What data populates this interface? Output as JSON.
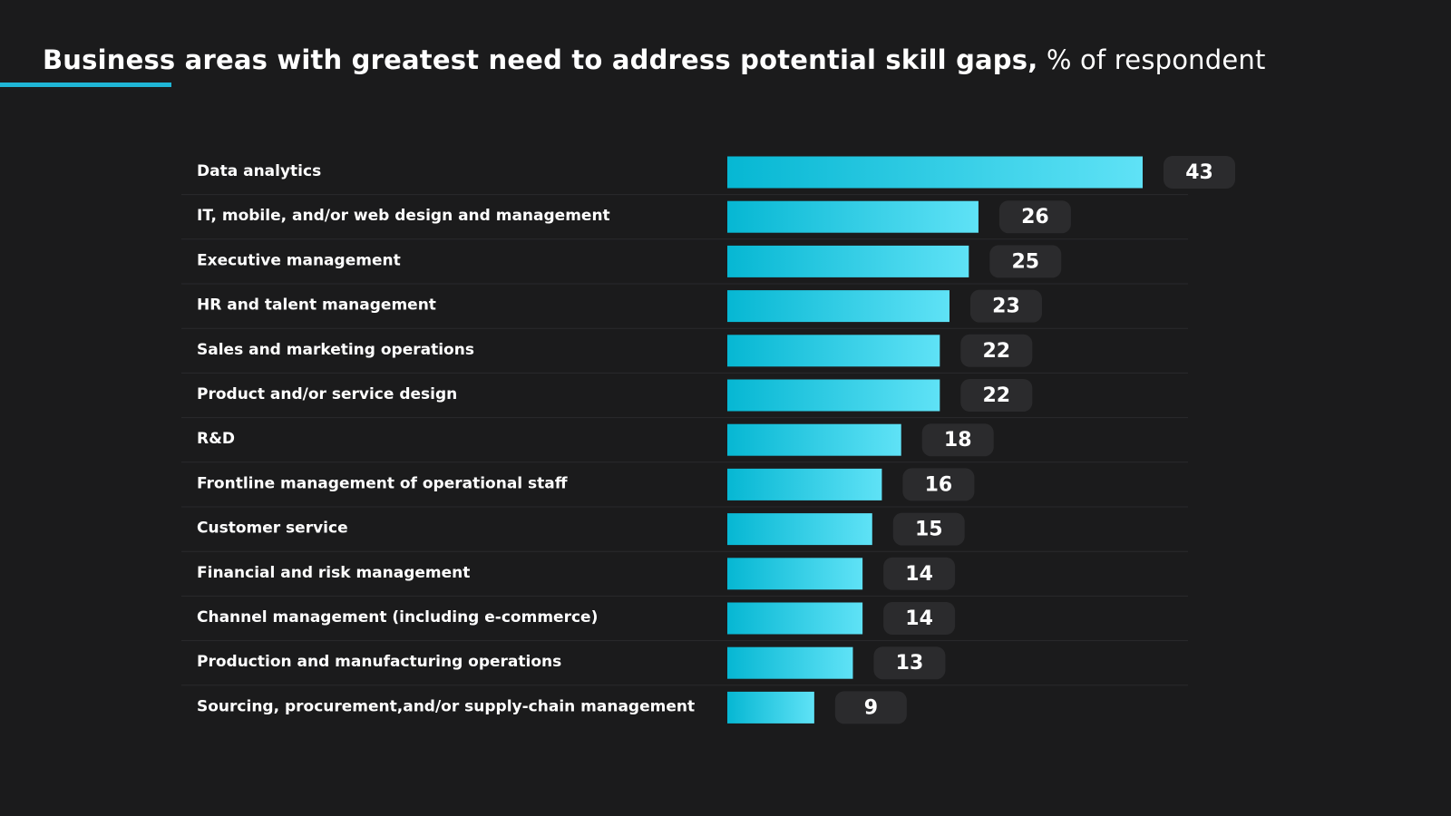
{
  "title": {
    "main": "Business areas with greatest need to address potential skill gaps,",
    "unit": " % of respondent"
  },
  "colors": {
    "background": "#1b1b1c",
    "accent": "#1fb6d6",
    "bar_start": "#06b7d3",
    "bar_end": "#5fe2f6",
    "value_pill": "#2b2b2d"
  },
  "chart_data": {
    "type": "bar",
    "orientation": "horizontal",
    "title": "Business areas with greatest need to address potential skill gaps, % of respondent",
    "categories": [
      "Data analytics",
      "IT, mobile, and/or web design and management",
      "Executive management",
      "HR and talent management",
      "Sales and marketing operations",
      "Product and/or service design",
      "R&D",
      "Frontline management of operational staff",
      "Customer service",
      "Financial and risk management",
      "Channel management (including e-commerce)",
      "Production and manufacturing operations",
      "Sourcing, procurement,and/or supply-chain management"
    ],
    "values": [
      43,
      26,
      25,
      23,
      22,
      22,
      18,
      16,
      15,
      14,
      14,
      13,
      9
    ],
    "xlabel": "",
    "ylabel": "",
    "xlim": [
      0,
      43
    ],
    "grid": false,
    "legend": "none",
    "data_labels": true
  }
}
